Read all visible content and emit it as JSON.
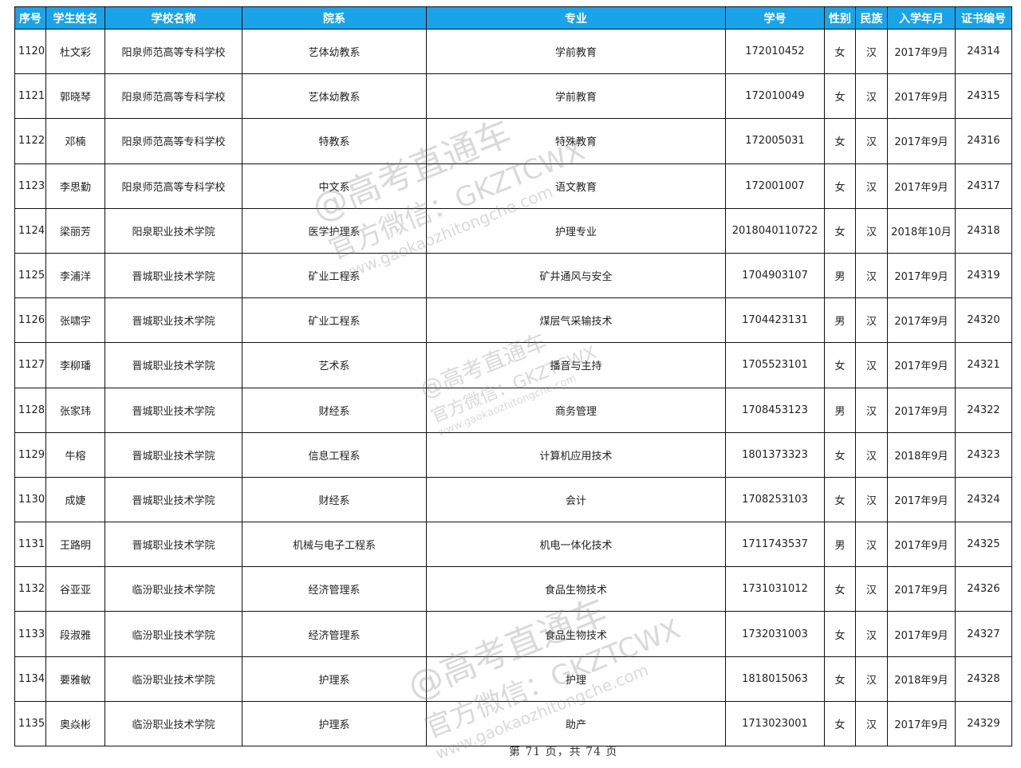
{
  "headers": [
    "序号",
    "学生姓名",
    "学校名称",
    "院系",
    "专业",
    "学号",
    "性别",
    "民族",
    "入学年月",
    "证书编号"
  ],
  "rows": [
    [
      "1120",
      "杜文彩",
      "阳泉师范高等专科学校",
      "艺体幼教系",
      "学前教育",
      "172010452",
      "女",
      "汉",
      "2017年9月",
      "24314"
    ],
    [
      "1121",
      "郭晓琴",
      "阳泉师范高等专科学校",
      "艺体幼教系",
      "学前教育",
      "172010049",
      "女",
      "汉",
      "2017年9月",
      "24315"
    ],
    [
      "1122",
      "邓楠",
      "阳泉师范高等专科学校",
      "特教系",
      "特殊教育",
      "172005031",
      "女",
      "汉",
      "2017年9月",
      "24316"
    ],
    [
      "1123",
      "李思勤",
      "阳泉师范高等专科学校",
      "中文系",
      "语文教育",
      "172001007",
      "女",
      "汉",
      "2017年9月",
      "24317"
    ],
    [
      "1124",
      "梁丽芳",
      "阳泉职业技术学院",
      "医学护理系",
      "护理专业",
      "2018040110722",
      "女",
      "汉",
      "2018年10月",
      "24318"
    ],
    [
      "1125",
      "李浦洋",
      "晋城职业技术学院",
      "矿业工程系",
      "矿井通风与安全",
      "1704903107",
      "男",
      "汉",
      "2017年9月",
      "24319"
    ],
    [
      "1126",
      "张啸宇",
      "晋城职业技术学院",
      "矿业工程系",
      "煤层气采输技术",
      "1704423131",
      "男",
      "汉",
      "2017年9月",
      "24320"
    ],
    [
      "1127",
      "李柳璠",
      "晋城职业技术学院",
      "艺术系",
      "播音与主持",
      "1705523101",
      "女",
      "汉",
      "2017年9月",
      "24321"
    ],
    [
      "1128",
      "张家玮",
      "晋城职业技术学院",
      "财经系",
      "商务管理",
      "1708453123",
      "男",
      "汉",
      "2017年9月",
      "24322"
    ],
    [
      "1129",
      "牛榕",
      "晋城职业技术学院",
      "信息工程系",
      "计算机应用技术",
      "1801373323",
      "女",
      "汉",
      "2018年9月",
      "24323"
    ],
    [
      "1130",
      "成婕",
      "晋城职业技术学院",
      "财经系",
      "会计",
      "1708253103",
      "女",
      "汉",
      "2017年9月",
      "24324"
    ],
    [
      "1131",
      "王路明",
      "晋城职业技术学院",
      "机械与电子工程系",
      "机电一体化技术",
      "1711743537",
      "男",
      "汉",
      "2017年9月",
      "24325"
    ],
    [
      "1132",
      "谷亚亚",
      "临汾职业技术学院",
      "经济管理系",
      "食品生物技术",
      "1731031012",
      "女",
      "汉",
      "2017年9月",
      "24326"
    ],
    [
      "1133",
      "段淑雅",
      "临汾职业技术学院",
      "经济管理系",
      "食品生物技术",
      "1732031003",
      "女",
      "汉",
      "2017年9月",
      "24327"
    ],
    [
      "1134",
      "要雅敏",
      "临汾职业技术学院",
      "护理系",
      "护理",
      "1818015063",
      "女",
      "汉",
      "2018年9月",
      "24328"
    ],
    [
      "1135",
      "奥焱彬",
      "临汾职业技术学院",
      "护理系",
      "助产",
      "1713023001",
      "女",
      "汉",
      "2017年9月",
      "24329"
    ]
  ],
  "footer": "第 71 页，共 74 页",
  "watermark": {
    "line1": "@高考直通车",
    "line2": "官方微信：GKZTCWX",
    "line3": "www.gaokaozhitongche.com"
  },
  "colors": {
    "header_bg": "#1aa3e8"
  }
}
